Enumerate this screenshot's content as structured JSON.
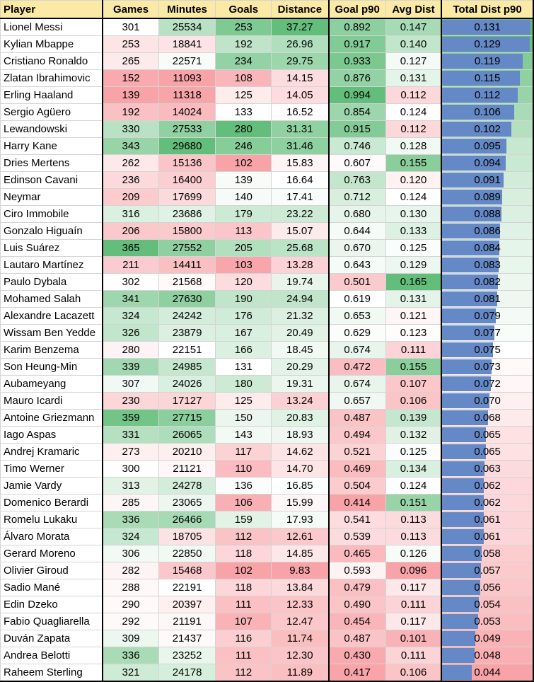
{
  "headers": [
    "Player",
    "Games",
    "Minutes",
    "Goals",
    "Distance",
    "Goal p90",
    "Avg Dist",
    "Total Dist p90"
  ],
  "rows": [
    [
      "Lionel Messi",
      "301",
      "25534",
      "253",
      "37.27",
      "0.892",
      "0.147",
      "0.131"
    ],
    [
      "Kylian Mbappe",
      "253",
      "18841",
      "192",
      "26.96",
      "0.917",
      "0.140",
      "0.129"
    ],
    [
      "Cristiano Ronaldo",
      "265",
      "22571",
      "234",
      "29.75",
      "0.933",
      "0.127",
      "0.119"
    ],
    [
      "Zlatan Ibrahimovic",
      "152",
      "11093",
      "108",
      "14.15",
      "0.876",
      "0.131",
      "0.115"
    ],
    [
      "Erling Haaland",
      "139",
      "11318",
      "125",
      "14.05",
      "0.994",
      "0.112",
      "0.112"
    ],
    [
      "Sergio Agüero",
      "192",
      "14024",
      "133",
      "16.52",
      "0.854",
      "0.124",
      "0.106"
    ],
    [
      "Lewandowski",
      "330",
      "27533",
      "280",
      "31.31",
      "0.915",
      "0.112",
      "0.102"
    ],
    [
      "Harry Kane",
      "343",
      "29680",
      "246",
      "31.46",
      "0.746",
      "0.128",
      "0.095"
    ],
    [
      "Dries Mertens",
      "262",
      "15136",
      "102",
      "15.83",
      "0.607",
      "0.155",
      "0.094"
    ],
    [
      "Edinson Cavani",
      "236",
      "16400",
      "139",
      "16.64",
      "0.763",
      "0.120",
      "0.091"
    ],
    [
      "Neymar",
      "209",
      "17699",
      "140",
      "17.41",
      "0.712",
      "0.124",
      "0.089"
    ],
    [
      "Ciro Immobile",
      "316",
      "23686",
      "179",
      "23.22",
      "0.680",
      "0.130",
      "0.088"
    ],
    [
      "Gonzalo Higuaín",
      "206",
      "15800",
      "113",
      "15.07",
      "0.644",
      "0.133",
      "0.086"
    ],
    [
      "Luis Suárez",
      "365",
      "27552",
      "205",
      "25.68",
      "0.670",
      "0.125",
      "0.084"
    ],
    [
      "Lautaro Martínez",
      "211",
      "14411",
      "103",
      "13.28",
      "0.643",
      "0.129",
      "0.083"
    ],
    [
      "Paulo Dybala",
      "302",
      "21568",
      "120",
      "19.74",
      "0.501",
      "0.165",
      "0.082"
    ],
    [
      "Mohamed Salah",
      "341",
      "27630",
      "190",
      "24.94",
      "0.619",
      "0.131",
      "0.081"
    ],
    [
      "Alexandre Lacazett",
      "324",
      "24242",
      "176",
      "21.32",
      "0.653",
      "0.121",
      "0.079"
    ],
    [
      "Wissam Ben Yedde",
      "326",
      "23879",
      "167",
      "20.49",
      "0.629",
      "0.123",
      "0.077"
    ],
    [
      "Karim Benzema",
      "280",
      "22151",
      "166",
      "18.45",
      "0.674",
      "0.111",
      "0.075"
    ],
    [
      "Son Heung-Min",
      "339",
      "24985",
      "131",
      "20.29",
      "0.472",
      "0.155",
      "0.073"
    ],
    [
      "Aubameyang",
      "307",
      "24026",
      "180",
      "19.31",
      "0.674",
      "0.107",
      "0.072"
    ],
    [
      "Mauro Icardi",
      "230",
      "17127",
      "125",
      "13.24",
      "0.657",
      "0.106",
      "0.070"
    ],
    [
      "Antoine Griezmann",
      "359",
      "27715",
      "150",
      "20.83",
      "0.487",
      "0.139",
      "0.068"
    ],
    [
      "Iago Aspas",
      "331",
      "26065",
      "143",
      "18.93",
      "0.494",
      "0.132",
      "0.065"
    ],
    [
      "Andrej Kramaric",
      "273",
      "20210",
      "117",
      "14.62",
      "0.521",
      "0.125",
      "0.065"
    ],
    [
      "Timo Werner",
      "300",
      "21121",
      "110",
      "14.70",
      "0.469",
      "0.134",
      "0.063"
    ],
    [
      "Jamie Vardy",
      "313",
      "24278",
      "136",
      "16.85",
      "0.504",
      "0.124",
      "0.062"
    ],
    [
      "Domenico Berardi",
      "285",
      "23065",
      "106",
      "15.99",
      "0.414",
      "0.151",
      "0.062"
    ],
    [
      "Romelu Lukaku",
      "336",
      "26466",
      "159",
      "17.93",
      "0.541",
      "0.113",
      "0.061"
    ],
    [
      "Álvaro Morata",
      "324",
      "18705",
      "112",
      "12.61",
      "0.539",
      "0.113",
      "0.061"
    ],
    [
      "Gerard Moreno",
      "306",
      "22850",
      "118",
      "14.85",
      "0.465",
      "0.126",
      "0.058"
    ],
    [
      "Olivier Giroud",
      "282",
      "15468",
      "102",
      "9.83",
      "0.593",
      "0.096",
      "0.057"
    ],
    [
      "Sadio Mané",
      "288",
      "22191",
      "118",
      "13.84",
      "0.479",
      "0.117",
      "0.056"
    ],
    [
      "Edin Dzeko",
      "290",
      "20397",
      "111",
      "12.33",
      "0.490",
      "0.111",
      "0.054"
    ],
    [
      "Fabio Quagliarella",
      "292",
      "21191",
      "107",
      "12.47",
      "0.454",
      "0.117",
      "0.053"
    ],
    [
      "Duván Zapata",
      "309",
      "21437",
      "116",
      "11.74",
      "0.487",
      "0.101",
      "0.049"
    ],
    [
      "Andrea Belotti",
      "336",
      "23252",
      "111",
      "12.30",
      "0.430",
      "0.111",
      "0.048"
    ],
    [
      "Raheem Sterling",
      "321",
      "24178",
      "112",
      "11.89",
      "0.417",
      "0.106",
      "0.044"
    ]
  ],
  "colors": {
    "header_fill": "#fbe9a6",
    "high": "#63be7b",
    "mid": "#ffffff",
    "low": "#f8a3a8",
    "bar": "#6489c6"
  },
  "chart_data": {
    "type": "table",
    "columns": [
      "Player",
      "Games",
      "Minutes",
      "Goals",
      "Distance",
      "Goal p90",
      "Avg Dist",
      "Total Dist p90"
    ],
    "color_scale": "green-white-red per numeric column",
    "data_bar_column": "Total Dist p90"
  }
}
